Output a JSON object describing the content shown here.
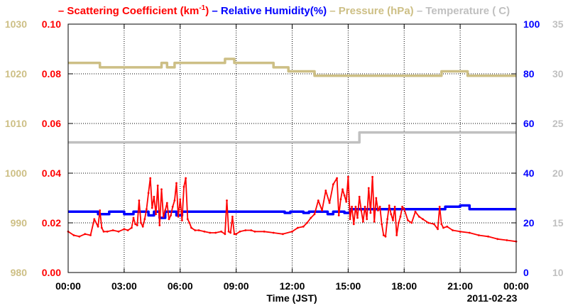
{
  "chart_data": {
    "type": "line",
    "date_label": "2011-02-23",
    "xlabel": "Time (JST)",
    "x_unit": "hours",
    "x_range": [
      0,
      24
    ],
    "x_ticks": [
      "00:00",
      "03:00",
      "06:00",
      "09:00",
      "12:00",
      "15:00",
      "18:00",
      "21:00",
      "00:00"
    ],
    "grid": true,
    "legend": {
      "position": "top",
      "entries": [
        {
          "dash": "–",
          "text": "Scattering Coefficient (km",
          "sup": "-1",
          "suffix": ")",
          "color": "#ff0000"
        },
        {
          "dash": "–",
          "text": "Relative Humidity(%)",
          "color": "#0000ff"
        },
        {
          "dash": "–",
          "text": "Pressure (hPa)",
          "color": "#cdbf85"
        },
        {
          "dash": "–",
          "text": "Temperature (",
          "suffix": "C)",
          "color": "#c0c0c0"
        }
      ]
    },
    "axes": {
      "pressure": {
        "side": "left-outer",
        "min": 980,
        "max": 1030,
        "ticks": [
          "980",
          "990",
          "1000",
          "1010",
          "1020",
          "1030"
        ],
        "color": "#cdbf85"
      },
      "scattering": {
        "side": "left-inner",
        "min": 0,
        "max": 0.1,
        "ticks": [
          "0.00",
          "0.02",
          "0.04",
          "0.06",
          "0.08",
          "0.10"
        ],
        "color": "#ff0000"
      },
      "humidity": {
        "side": "right-inner",
        "min": 0,
        "max": 100,
        "ticks": [
          "0",
          "20",
          "40",
          "60",
          "80",
          "100"
        ],
        "color": "#0000ff"
      },
      "temperature": {
        "side": "right-outer",
        "min": 10,
        "max": 35,
        "ticks": [
          "10",
          "15",
          "20",
          "25",
          "30",
          "35"
        ],
        "color": "#c0c0c0"
      }
    },
    "series": [
      {
        "name": "Pressure (hPa)",
        "axis": "pressure",
        "color": "#cdbf85",
        "step": true,
        "x": [
          0,
          1.7,
          5.0,
          5.3,
          5.7,
          5.75,
          8.4,
          8.9,
          9.0,
          11.0,
          11.5,
          11.8,
          13.2,
          20.0,
          20.3,
          21.2,
          21.4,
          24
        ],
        "y": [
          1022.2,
          1021.3,
          1022.2,
          1021.3,
          1022.2,
          1022.2,
          1023.0,
          1022.2,
          1022.2,
          1021.3,
          1021.3,
          1020.5,
          1019.6,
          1020.5,
          1020.5,
          1020.5,
          1019.6,
          1019.6
        ]
      },
      {
        "name": "Temperature (C)",
        "axis": "temperature",
        "color": "#c0c0c0",
        "step": true,
        "x": [
          0,
          15.6,
          24
        ],
        "y": [
          23.1,
          24.1,
          24.1
        ]
      },
      {
        "name": "Relative Humidity(%)",
        "axis": "humidity",
        "color": "#0000ff",
        "step": true,
        "x": [
          0,
          1.6,
          2.2,
          3.0,
          3.5,
          4.3,
          4.6,
          4.9,
          5.2,
          5.8,
          6.1,
          6.5,
          11.6,
          11.9,
          12.6,
          12.9,
          13.9,
          14.2,
          14.8,
          15.1,
          19.9,
          20.2,
          21.0,
          21.5,
          24
        ],
        "y": [
          24.5,
          23.5,
          24.5,
          23.5,
          24.5,
          23.0,
          24.5,
          22.0,
          24.5,
          23.0,
          24.5,
          24.5,
          24.0,
          24.5,
          24.0,
          24.5,
          23.5,
          24.5,
          24.0,
          25.5,
          25.5,
          26.5,
          27.0,
          25.5,
          25.5
        ]
      },
      {
        "name": "Scattering Coefficient (km-1)",
        "axis": "scattering",
        "color": "#ff0000",
        "step": false,
        "x": [
          0,
          0.3,
          0.6,
          0.9,
          1.2,
          1.4,
          1.6,
          1.7,
          1.8,
          1.9,
          2.1,
          2.4,
          2.7,
          3.0,
          3.2,
          3.4,
          3.5,
          3.6,
          3.7,
          3.8,
          3.9,
          4.0,
          4.1,
          4.2,
          4.3,
          4.4,
          4.5,
          4.6,
          4.7,
          4.8,
          4.9,
          5.0,
          5.1,
          5.2,
          5.3,
          5.4,
          5.5,
          5.6,
          5.7,
          5.8,
          5.9,
          6.0,
          6.1,
          6.2,
          6.3,
          6.4,
          6.5,
          6.6,
          6.8,
          7.0,
          7.3,
          7.6,
          7.9,
          8.2,
          8.4,
          8.5,
          8.6,
          8.7,
          8.8,
          8.9,
          9.0,
          9.2,
          9.5,
          9.8,
          10.0,
          10.5,
          11.0,
          11.5,
          12.0,
          12.3,
          12.6,
          12.8,
          13.0,
          13.2,
          13.4,
          13.6,
          13.8,
          14.0,
          14.2,
          14.4,
          14.5,
          14.6,
          14.7,
          14.8,
          14.9,
          15.0,
          15.1,
          15.2,
          15.3,
          15.4,
          15.5,
          15.6,
          15.7,
          15.8,
          15.9,
          16.0,
          16.1,
          16.2,
          16.3,
          16.4,
          16.5,
          16.6,
          16.7,
          16.8,
          16.9,
          17.0,
          17.1,
          17.2,
          17.3,
          17.4,
          17.5,
          17.6,
          17.7,
          17.8,
          17.9,
          18.0,
          18.2,
          18.4,
          18.6,
          18.8,
          19.0,
          19.3,
          19.6,
          19.8,
          19.9,
          20.0,
          20.1,
          20.3,
          20.6,
          21.0,
          21.5,
          22.0,
          22.5,
          23.0,
          23.5,
          24.0
        ],
        "y": [
          0.0165,
          0.015,
          0.0145,
          0.0155,
          0.015,
          0.0215,
          0.0185,
          0.025,
          0.018,
          0.0165,
          0.0165,
          0.017,
          0.0165,
          0.0175,
          0.017,
          0.018,
          0.022,
          0.0195,
          0.019,
          0.029,
          0.02,
          0.0185,
          0.0215,
          0.0255,
          0.032,
          0.038,
          0.026,
          0.0305,
          0.0235,
          0.035,
          0.019,
          0.0335,
          0.0225,
          0.025,
          0.028,
          0.0215,
          0.023,
          0.0265,
          0.029,
          0.036,
          0.0225,
          0.0295,
          0.021,
          0.0345,
          0.038,
          0.0215,
          0.02,
          0.018,
          0.017,
          0.017,
          0.0165,
          0.016,
          0.016,
          0.0165,
          0.0155,
          0.029,
          0.0165,
          0.016,
          0.0225,
          0.0155,
          0.0155,
          0.0165,
          0.017,
          0.017,
          0.0165,
          0.0165,
          0.016,
          0.0155,
          0.0165,
          0.018,
          0.0185,
          0.02,
          0.022,
          0.0235,
          0.029,
          0.025,
          0.033,
          0.028,
          0.0355,
          0.038,
          0.023,
          0.0295,
          0.0335,
          0.031,
          0.0285,
          0.0385,
          0.0215,
          0.0265,
          0.0195,
          0.0265,
          0.022,
          0.0305,
          0.025,
          0.0205,
          0.0265,
          0.0215,
          0.034,
          0.024,
          0.0385,
          0.0205,
          0.03,
          0.025,
          0.0265,
          0.0195,
          0.015,
          0.0145,
          0.0215,
          0.027,
          0.0235,
          0.021,
          0.0265,
          0.015,
          0.02,
          0.0225,
          0.0265,
          0.0255,
          0.021,
          0.02,
          0.0245,
          0.0225,
          0.0215,
          0.02,
          0.0195,
          0.0175,
          0.0265,
          0.0195,
          0.018,
          0.0185,
          0.017,
          0.0165,
          0.016,
          0.015,
          0.0145,
          0.0135,
          0.013,
          0.0125
        ]
      }
    ]
  }
}
